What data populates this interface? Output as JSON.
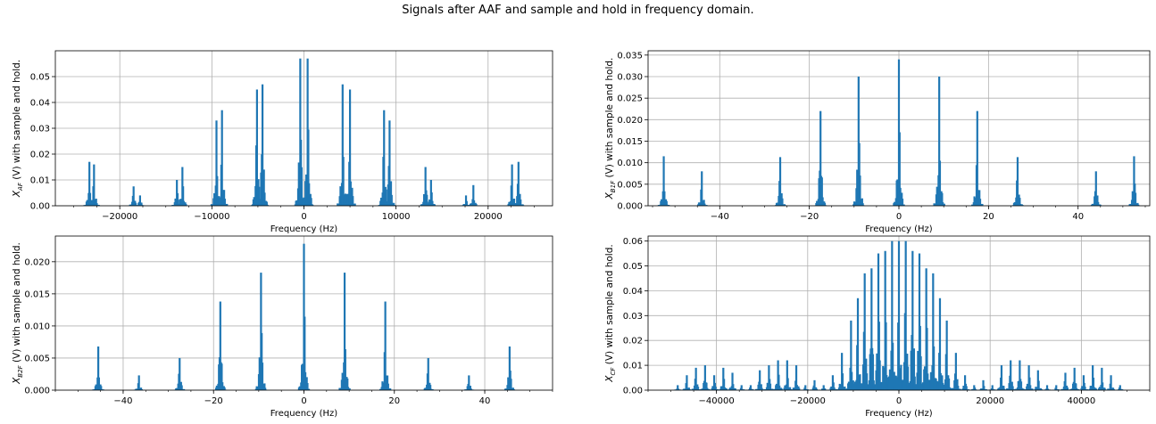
{
  "figure": {
    "suptitle": "Signals after AAF and sample and hold in frequency domain."
  },
  "chart_data": [
    {
      "id": "xaf",
      "type": "bar",
      "title": "",
      "xlabel": "Frequency (Hz)",
      "ylabel_main": "X",
      "ylabel_sub": "AF",
      "ylabel_rest": " (V) with sample and hold.",
      "xlim": [
        -27000,
        27000
      ],
      "ylim": [
        0,
        0.06
      ],
      "xticks": [
        -20000,
        -10000,
        0,
        10000,
        20000
      ],
      "yticks": [
        0.0,
        0.01,
        0.02,
        0.03,
        0.04,
        0.05
      ],
      "ytick_labels": [
        "0.00",
        "0.01",
        "0.02",
        "0.03",
        "0.04",
        "0.05"
      ],
      "grid": true,
      "color": "#1f77b4",
      "peaks": [
        [
          -23300,
          0.017
        ],
        [
          -22800,
          0.016
        ],
        [
          -18500,
          0.0075
        ],
        [
          -17800,
          0.004
        ],
        [
          -13800,
          0.01
        ],
        [
          -13200,
          0.015
        ],
        [
          -9500,
          0.033
        ],
        [
          -8900,
          0.037
        ],
        [
          -5100,
          0.045
        ],
        [
          -4500,
          0.047
        ],
        [
          -400,
          0.057
        ],
        [
          400,
          0.057
        ],
        [
          4200,
          0.047
        ],
        [
          5000,
          0.045
        ],
        [
          8700,
          0.037
        ],
        [
          9300,
          0.033
        ],
        [
          13200,
          0.015
        ],
        [
          13800,
          0.01
        ],
        [
          17600,
          0.004
        ],
        [
          18400,
          0.008
        ],
        [
          22600,
          0.016
        ],
        [
          23300,
          0.017
        ]
      ]
    },
    {
      "id": "xb1f",
      "type": "bar",
      "title": "",
      "xlabel": "Frequency (Hz)",
      "ylabel_main": "X",
      "ylabel_sub": "B1F",
      "ylabel_rest": " (V) with sample and hold.",
      "xlim": [
        -56,
        56
      ],
      "ylim": [
        0,
        0.036
      ],
      "xticks": [
        -40,
        -20,
        0,
        20,
        40
      ],
      "yticks": [
        0.0,
        0.005,
        0.01,
        0.015,
        0.02,
        0.025,
        0.03,
        0.035
      ],
      "ytick_labels": [
        "0.000",
        "0.005",
        "0.010",
        "0.015",
        "0.020",
        "0.025",
        "0.030",
        "0.035"
      ],
      "grid": true,
      "color": "#1f77b4",
      "peaks": [
        [
          -52.5,
          0.0115
        ],
        [
          -44,
          0.008
        ],
        [
          -26.5,
          0.0113
        ],
        [
          -17.5,
          0.022
        ],
        [
          -9,
          0.03
        ],
        [
          0,
          0.034
        ],
        [
          9,
          0.03
        ],
        [
          17.5,
          0.022
        ],
        [
          26.5,
          0.0113
        ],
        [
          44,
          0.008
        ],
        [
          52.5,
          0.0115
        ]
      ]
    },
    {
      "id": "xb2f",
      "type": "bar",
      "title": "",
      "xlabel": "Frequency (Hz)",
      "ylabel_main": "X",
      "ylabel_sub": "B2F",
      "ylabel_rest": " (V) with sample and hold.",
      "xlim": [
        -55,
        55
      ],
      "ylim": [
        0,
        0.024
      ],
      "xticks": [
        -40,
        -20,
        0,
        20,
        40
      ],
      "yticks": [
        0.0,
        0.005,
        0.01,
        0.015,
        0.02
      ],
      "ytick_labels": [
        "0.000",
        "0.005",
        "0.010",
        "0.015",
        "0.020"
      ],
      "grid": true,
      "color": "#1f77b4",
      "peaks": [
        [
          -45.5,
          0.0068
        ],
        [
          -36.5,
          0.0023
        ],
        [
          -27.5,
          0.005
        ],
        [
          -18.5,
          0.0138
        ],
        [
          -9.5,
          0.0183
        ],
        [
          0,
          0.0228
        ],
        [
          9,
          0.0183
        ],
        [
          18,
          0.0138
        ],
        [
          27.5,
          0.005
        ],
        [
          36.5,
          0.0023
        ],
        [
          45.5,
          0.0068
        ]
      ]
    },
    {
      "id": "xcf",
      "type": "bar",
      "title": "",
      "xlabel": "Frequency (Hz)",
      "ylabel_main": "X",
      "ylabel_sub": "CF",
      "ylabel_rest": " (V) with sample and hold.",
      "xlim": [
        -55000,
        55000
      ],
      "ylim": [
        0,
        0.062
      ],
      "xticks": [
        -40000,
        -20000,
        0,
        20000,
        40000
      ],
      "yticks": [
        0.0,
        0.01,
        0.02,
        0.03,
        0.04,
        0.05,
        0.06
      ],
      "ytick_labels": [
        "0.00",
        "0.01",
        "0.02",
        "0.03",
        "0.04",
        "0.05",
        "0.06"
      ],
      "grid": true,
      "color": "#1f77b4",
      "peaks": [
        [
          -48500,
          0.002
        ],
        [
          -46500,
          0.006
        ],
        [
          -44500,
          0.009
        ],
        [
          -42500,
          0.01
        ],
        [
          -40500,
          0.006
        ],
        [
          -38500,
          0.009
        ],
        [
          -36500,
          0.007
        ],
        [
          -34500,
          0.002
        ],
        [
          -32500,
          0.002
        ],
        [
          -30500,
          0.008
        ],
        [
          -28500,
          0.01
        ],
        [
          -26500,
          0.012
        ],
        [
          -24500,
          0.012
        ],
        [
          -22500,
          0.01
        ],
        [
          -20500,
          0.002
        ],
        [
          -18500,
          0.004
        ],
        [
          -16500,
          0.002
        ],
        [
          -14500,
          0.006
        ],
        [
          -12500,
          0.015
        ],
        [
          -10500,
          0.028
        ],
        [
          -9000,
          0.037
        ],
        [
          -7500,
          0.047
        ],
        [
          -6000,
          0.049
        ],
        [
          -4500,
          0.055
        ],
        [
          -3000,
          0.056
        ],
        [
          -1500,
          0.06
        ],
        [
          0,
          0.06
        ],
        [
          1500,
          0.06
        ],
        [
          3000,
          0.056
        ],
        [
          4500,
          0.055
        ],
        [
          6000,
          0.049
        ],
        [
          7500,
          0.047
        ],
        [
          9000,
          0.037
        ],
        [
          10500,
          0.028
        ],
        [
          12500,
          0.015
        ],
        [
          14500,
          0.006
        ],
        [
          16500,
          0.002
        ],
        [
          18500,
          0.004
        ],
        [
          20500,
          0.002
        ],
        [
          22500,
          0.01
        ],
        [
          24500,
          0.012
        ],
        [
          26500,
          0.012
        ],
        [
          28500,
          0.01
        ],
        [
          30500,
          0.008
        ],
        [
          32500,
          0.002
        ],
        [
          34500,
          0.002
        ],
        [
          36500,
          0.007
        ],
        [
          38500,
          0.009
        ],
        [
          40500,
          0.006
        ],
        [
          42500,
          0.01
        ],
        [
          44500,
          0.009
        ],
        [
          46500,
          0.006
        ],
        [
          48500,
          0.002
        ]
      ]
    }
  ]
}
